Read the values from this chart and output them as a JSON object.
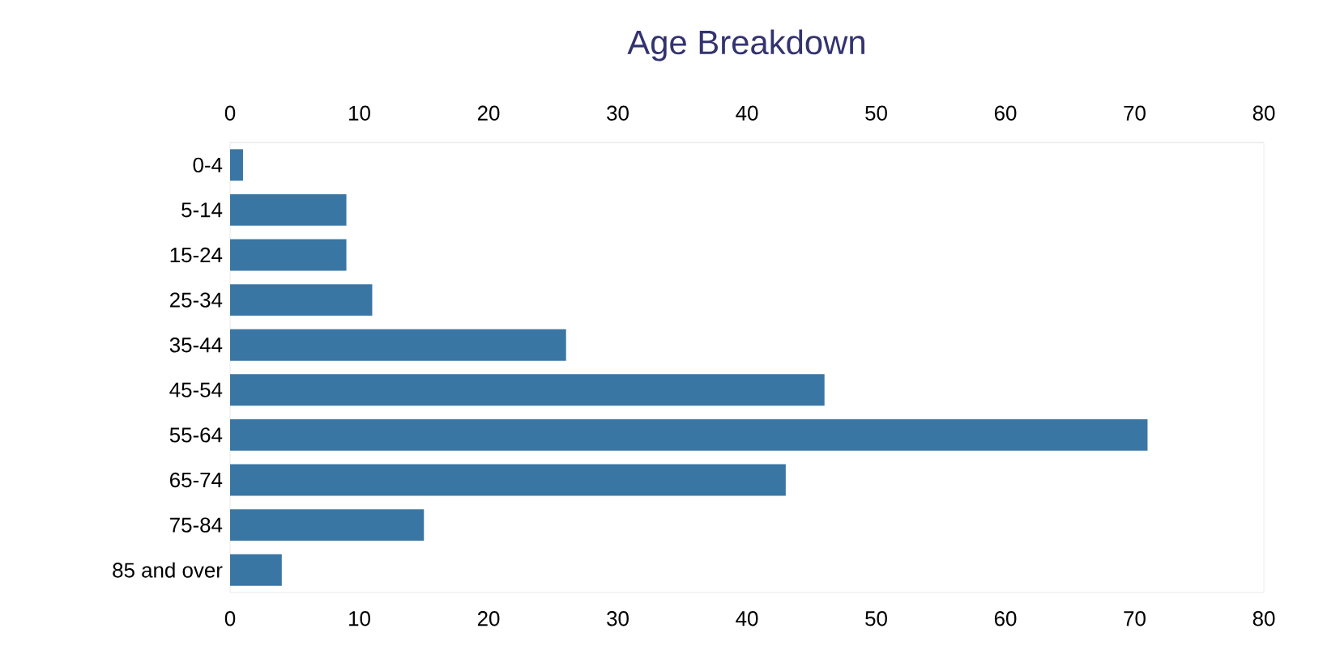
{
  "chart_data": {
    "type": "bar",
    "orientation": "horizontal",
    "title": "Age Breakdown",
    "categories": [
      "0-4",
      "5-14",
      "15-24",
      "25-34",
      "35-44",
      "45-54",
      "55-64",
      "65-74",
      "75-84",
      "85 and over"
    ],
    "values": [
      1,
      9,
      9,
      11,
      26,
      46,
      71,
      43,
      15,
      4
    ],
    "color": "#3a76a4",
    "xlim": [
      0,
      80
    ],
    "xticks": [
      0,
      10,
      20,
      30,
      40,
      50,
      60,
      70,
      80
    ],
    "x2lim": [
      0,
      80
    ],
    "x2ticks": [
      0,
      10,
      20,
      30,
      40,
      50,
      60,
      70,
      80
    ]
  }
}
